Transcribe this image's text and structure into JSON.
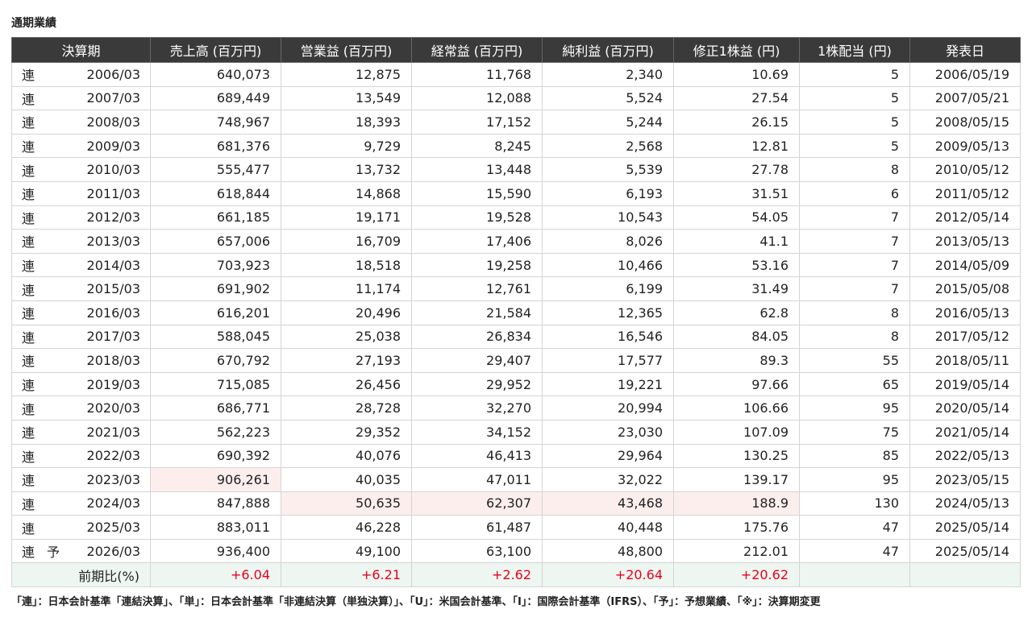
{
  "title": "通期業績",
  "headers": [
    "決算期",
    "売上高 (百万円)",
    "営業益 (百万円)",
    "経常益 (百万円)",
    "純利益 (百万円)",
    "修正1株益 (円)",
    "1株配当 (円)",
    "発表日"
  ],
  "rows": [
    {
      "kind": "連",
      "fc": "",
      "period": "2006/03",
      "sales": "640,073",
      "op": "12,875",
      "ord": "11,768",
      "net": "2,340",
      "eps": "10.69",
      "div": "5",
      "date": "2006/05/19"
    },
    {
      "kind": "連",
      "fc": "",
      "period": "2007/03",
      "sales": "689,449",
      "op": "13,549",
      "ord": "12,088",
      "net": "5,524",
      "eps": "27.54",
      "div": "5",
      "date": "2007/05/21"
    },
    {
      "kind": "連",
      "fc": "",
      "period": "2008/03",
      "sales": "748,967",
      "op": "18,393",
      "ord": "17,152",
      "net": "5,244",
      "eps": "26.15",
      "div": "5",
      "date": "2008/05/15"
    },
    {
      "kind": "連",
      "fc": "",
      "period": "2009/03",
      "sales": "681,376",
      "op": "9,729",
      "ord": "8,245",
      "net": "2,568",
      "eps": "12.81",
      "div": "5",
      "date": "2009/05/13"
    },
    {
      "kind": "連",
      "fc": "",
      "period": "2010/03",
      "sales": "555,477",
      "op": "13,732",
      "ord": "13,448",
      "net": "5,539",
      "eps": "27.78",
      "div": "8",
      "date": "2010/05/12"
    },
    {
      "kind": "連",
      "fc": "",
      "period": "2011/03",
      "sales": "618,844",
      "op": "14,868",
      "ord": "15,590",
      "net": "6,193",
      "eps": "31.51",
      "div": "6",
      "date": "2011/05/12"
    },
    {
      "kind": "連",
      "fc": "",
      "period": "2012/03",
      "sales": "661,185",
      "op": "19,171",
      "ord": "19,528",
      "net": "10,543",
      "eps": "54.05",
      "div": "7",
      "date": "2012/05/14"
    },
    {
      "kind": "連",
      "fc": "",
      "period": "2013/03",
      "sales": "657,006",
      "op": "16,709",
      "ord": "17,406",
      "net": "8,026",
      "eps": "41.1",
      "div": "7",
      "date": "2013/05/13"
    },
    {
      "kind": "連",
      "fc": "",
      "period": "2014/03",
      "sales": "703,923",
      "op": "18,518",
      "ord": "19,258",
      "net": "10,466",
      "eps": "53.16",
      "div": "7",
      "date": "2014/05/09"
    },
    {
      "kind": "連",
      "fc": "",
      "period": "2015/03",
      "sales": "691,902",
      "op": "11,174",
      "ord": "12,761",
      "net": "6,199",
      "eps": "31.49",
      "div": "7",
      "date": "2015/05/08"
    },
    {
      "kind": "連",
      "fc": "",
      "period": "2016/03",
      "sales": "616,201",
      "op": "20,496",
      "ord": "21,584",
      "net": "12,365",
      "eps": "62.8",
      "div": "8",
      "date": "2016/05/13"
    },
    {
      "kind": "連",
      "fc": "",
      "period": "2017/03",
      "sales": "588,045",
      "op": "25,038",
      "ord": "26,834",
      "net": "16,546",
      "eps": "84.05",
      "div": "8",
      "date": "2017/05/12"
    },
    {
      "kind": "連",
      "fc": "",
      "period": "2018/03",
      "sales": "670,792",
      "op": "27,193",
      "ord": "29,407",
      "net": "17,577",
      "eps": "89.3",
      "div": "55",
      "date": "2018/05/11"
    },
    {
      "kind": "連",
      "fc": "",
      "period": "2019/03",
      "sales": "715,085",
      "op": "26,456",
      "ord": "29,952",
      "net": "19,221",
      "eps": "97.66",
      "div": "65",
      "date": "2019/05/14"
    },
    {
      "kind": "連",
      "fc": "",
      "period": "2020/03",
      "sales": "686,771",
      "op": "28,728",
      "ord": "32,270",
      "net": "20,994",
      "eps": "106.66",
      "div": "95",
      "date": "2020/05/14"
    },
    {
      "kind": "連",
      "fc": "",
      "period": "2021/03",
      "sales": "562,223",
      "op": "29,352",
      "ord": "34,152",
      "net": "23,030",
      "eps": "107.09",
      "div": "75",
      "date": "2021/05/14"
    },
    {
      "kind": "連",
      "fc": "",
      "period": "2022/03",
      "sales": "690,392",
      "op": "40,076",
      "ord": "46,413",
      "net": "29,964",
      "eps": "130.25",
      "div": "85",
      "date": "2022/05/13"
    },
    {
      "kind": "連",
      "fc": "",
      "period": "2023/03",
      "sales": "906,261",
      "op": "40,035",
      "ord": "47,011",
      "net": "32,022",
      "eps": "139.17",
      "div": "95",
      "date": "2023/05/15",
      "hl": [
        "sales"
      ]
    },
    {
      "kind": "連",
      "fc": "",
      "period": "2024/03",
      "sales": "847,888",
      "op": "50,635",
      "ord": "62,307",
      "net": "43,468",
      "eps": "188.9",
      "div": "130",
      "date": "2024/05/13",
      "hl": [
        "op",
        "ord",
        "net",
        "eps"
      ]
    },
    {
      "kind": "連",
      "fc": "",
      "period": "2025/03",
      "sales": "883,011",
      "op": "46,228",
      "ord": "61,487",
      "net": "40,448",
      "eps": "175.76",
      "div": "47",
      "date": "2025/05/14"
    },
    {
      "kind": "連",
      "fc": "予",
      "period": "2026/03",
      "sales": "936,400",
      "op": "49,100",
      "ord": "63,100",
      "net": "48,800",
      "eps": "212.01",
      "div": "47",
      "date": "2025/05/14"
    }
  ],
  "diff_row": {
    "label": "前期比(%)",
    "sales": "+6.04",
    "op": "+6.21",
    "ord": "+2.62",
    "net": "+20.64",
    "eps": "+20.62",
    "div": "",
    "date": ""
  },
  "note": "「連」：日本会計基準「連結決算」、「単」：日本会計基準「非連結決算（単独決算）」、「U」：米国会計基準、「I」：国際会計基準（IFRS）、「予」：予想業績、「※」：決算期変更",
  "colors": {
    "header_bg": "#3a3a3a",
    "highlight_bg": "#fdeeee",
    "diff_row_bg": "#eef6f1",
    "diff_text": "#e8001c"
  }
}
